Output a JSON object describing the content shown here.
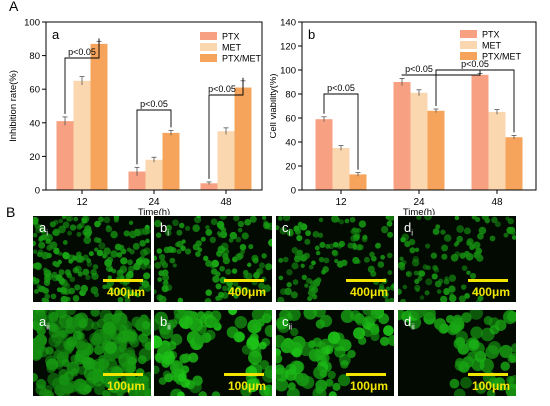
{
  "figure": {
    "label_a": "A",
    "label_b": "B"
  },
  "chart_data": [
    {
      "type": "bar",
      "panel": "a",
      "categories": [
        "12",
        "24",
        "48"
      ],
      "xlabel": "Time(h)",
      "ylabel": "Inhibition rate(%)",
      "ylim": [
        0,
        100
      ],
      "yticks": [
        0,
        20,
        40,
        60,
        80,
        100
      ],
      "legend_position": "top-right",
      "series": [
        {
          "name": "PTX",
          "color": "#f7a182",
          "values": [
            41,
            11,
            4
          ],
          "errors": [
            2.5,
            2.5,
            0.8
          ]
        },
        {
          "name": "MET",
          "color": "#fbd7b0",
          "values": [
            65,
            18,
            35
          ],
          "errors": [
            2.5,
            1.5,
            2
          ]
        },
        {
          "name": "PTX/MET",
          "color": "#f6a45b",
          "values": [
            87,
            34,
            61
          ],
          "errors": [
            1.5,
            1.5,
            4
          ]
        }
      ],
      "annotations": [
        {
          "text": "p<0.05",
          "from": [
            "12",
            "PTX"
          ],
          "to": [
            "12",
            "PTX/MET"
          ]
        },
        {
          "text": "p<0.05",
          "from": [
            "24",
            "PTX"
          ],
          "to": [
            "24",
            "PTX/MET"
          ]
        },
        {
          "text": "p<0.05",
          "from": [
            "48",
            "PTX"
          ],
          "to": [
            "48",
            "PTX/MET"
          ]
        }
      ]
    },
    {
      "type": "bar",
      "panel": "b",
      "categories": [
        "12",
        "24",
        "48"
      ],
      "xlabel": "Time(h)",
      "ylabel": "Cell viability(%)",
      "ylim": [
        0,
        140
      ],
      "yticks": [
        0,
        20,
        40,
        60,
        80,
        100,
        120,
        140
      ],
      "legend_position": "top-right",
      "series": [
        {
          "name": "PTX",
          "color": "#f7a182",
          "values": [
            59,
            90,
            96
          ],
          "errors": [
            2,
            3,
            1
          ]
        },
        {
          "name": "MET",
          "color": "#fbd7b0",
          "values": [
            35,
            81,
            65
          ],
          "errors": [
            2,
            2.5,
            2
          ]
        },
        {
          "name": "PTX/MET",
          "color": "#f6a45b",
          "values": [
            13,
            66,
            44
          ],
          "errors": [
            1.5,
            1.5,
            1.5
          ]
        }
      ],
      "annotations": [
        {
          "text": "p<0.05",
          "from": [
            "12",
            "PTX"
          ],
          "to": [
            "12",
            "PTX/MET"
          ]
        },
        {
          "text": "p<0.05",
          "from": [
            "24",
            "PTX"
          ],
          "to": [
            "48",
            "PTX"
          ]
        },
        {
          "text": "p<0.05",
          "from": [
            "24",
            "PTX/MET"
          ],
          "to": [
            "48",
            "PTX/MET"
          ]
        }
      ]
    }
  ],
  "micrographs": [
    {
      "label": "a",
      "sub": "i",
      "scale": "400μm",
      "density": 0.95,
      "bright": 0.55
    },
    {
      "label": "b",
      "sub": "i",
      "scale": "400μm",
      "density": 0.7,
      "bright": 0.6
    },
    {
      "label": "c",
      "sub": "i",
      "scale": "400μm",
      "density": 0.6,
      "bright": 0.5
    },
    {
      "label": "d",
      "sub": "i",
      "scale": "400μm",
      "density": 0.55,
      "bright": 0.45
    },
    {
      "label": "a",
      "sub": "ii",
      "scale": "100μm",
      "density": 0.95,
      "bright": 0.5
    },
    {
      "label": "b",
      "sub": "ii",
      "scale": "100μm",
      "density": 0.6,
      "bright": 0.8
    },
    {
      "label": "c",
      "sub": "ii",
      "scale": "100μm",
      "density": 0.5,
      "bright": 0.75
    },
    {
      "label": "d",
      "sub": "ii",
      "scale": "100μm",
      "density": 0.45,
      "bright": 0.7
    }
  ]
}
